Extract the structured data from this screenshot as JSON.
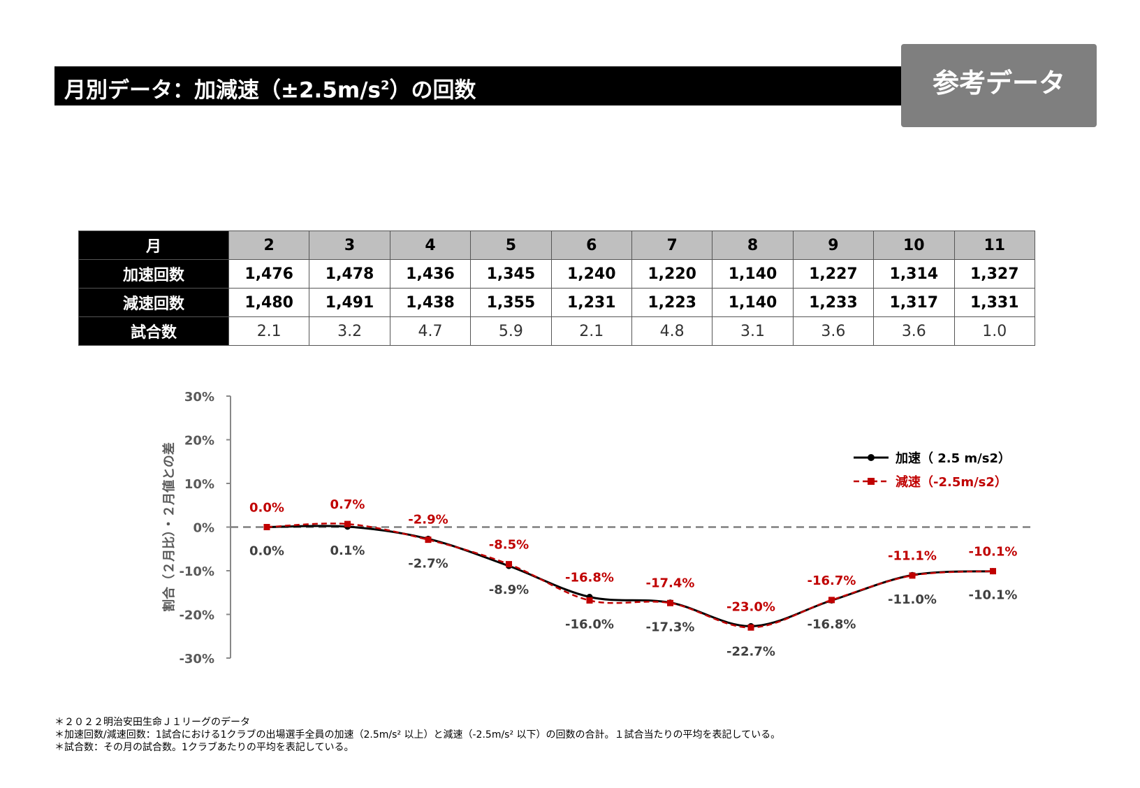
{
  "header": {
    "title": "月別データ：加減速（±2.5m/s",
    "title_sup": "2",
    "title_tail": "）の回数",
    "badge": "参考データ"
  },
  "table": {
    "corner_label": "月",
    "months": [
      "2",
      "3",
      "4",
      "5",
      "6",
      "7",
      "8",
      "9",
      "10",
      "11"
    ],
    "rows": [
      {
        "label": "加速回数",
        "values": [
          "1,476",
          "1,478",
          "1,436",
          "1,345",
          "1,240",
          "1,220",
          "1,140",
          "1,227",
          "1,314",
          "1,327"
        ]
      },
      {
        "label": "減速回数",
        "values": [
          "1,480",
          "1,491",
          "1,438",
          "1,355",
          "1,231",
          "1,223",
          "1,140",
          "1,233",
          "1,317",
          "1,331"
        ]
      },
      {
        "label": "試合数",
        "values": [
          "2.1",
          "3.2",
          "4.7",
          "5.9",
          "2.1",
          "4.8",
          "3.1",
          "3.6",
          "3.6",
          "1.0"
        ]
      }
    ]
  },
  "chart_data": {
    "type": "line",
    "x": [
      "2",
      "3",
      "4",
      "5",
      "6",
      "7",
      "8",
      "9",
      "10",
      "11"
    ],
    "ylabel": "割合（２月比）・２月値との差",
    "ylim": [
      -30,
      30
    ],
    "yticks": [
      "30%",
      "20%",
      "10%",
      "0%",
      "-10%",
      "-20%",
      "-30%"
    ],
    "reference_line": 0,
    "legend_position": "top-right",
    "series": [
      {
        "name": "加速（ 2.5 m/s2）",
        "color": "#000000",
        "marker": "circle",
        "dash": "solid",
        "values": [
          0.0,
          0.1,
          -2.7,
          -8.9,
          -16.0,
          -17.3,
          -22.7,
          -16.8,
          -11.0,
          -10.1
        ],
        "labels": [
          "0.0%",
          "0.1%",
          "-2.7%",
          "-8.9%",
          "-16.0%",
          "-17.3%",
          "-22.7%",
          "-16.8%",
          "-11.0%",
          "-10.1%"
        ]
      },
      {
        "name": "減速（-2.5m/s2）",
        "color": "#c00000",
        "marker": "square",
        "dash": "dashed",
        "values": [
          0.0,
          0.7,
          -2.9,
          -8.5,
          -16.8,
          -17.4,
          -23.0,
          -16.7,
          -11.1,
          -10.1
        ],
        "labels": [
          "0.0%",
          "0.7%",
          "-2.9%",
          "-8.5%",
          "-16.8%",
          "-17.4%",
          "-23.0%",
          "-16.7%",
          "-11.1%",
          "-10.1%"
        ]
      }
    ]
  },
  "footnotes": [
    "＊２０２２明治安田生命Ｊ１リーグのデータ",
    "＊加速回数/減速回数：1試合における1クラブの出場選手全員の加速（2.5m/s² 以上）と減速（-2.5m/s² 以下）の回数の合計。１試合当たりの平均を表記している。",
    "＊試合数：その月の試合数。1クラブあたりの平均を表記している。"
  ]
}
